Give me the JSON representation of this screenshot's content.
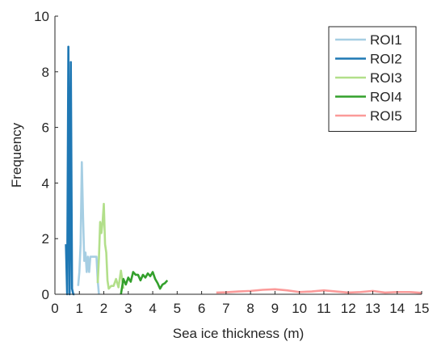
{
  "chart_data": {
    "type": "line",
    "title": "",
    "xlabel": "Sea ice thickness (m)",
    "ylabel": "Frequency",
    "xlim": [
      0,
      15
    ],
    "ylim": [
      0,
      10
    ],
    "xticks": [
      0,
      1,
      2,
      3,
      4,
      5,
      6,
      7,
      8,
      9,
      10,
      11,
      12,
      13,
      14,
      15
    ],
    "yticks": [
      0,
      2,
      4,
      6,
      8,
      10
    ],
    "grid": false,
    "legend_position": "top-right",
    "series": [
      {
        "name": "ROI1",
        "color": "#a6cee3",
        "x": [
          0.95,
          1.0,
          1.05,
          1.1,
          1.15,
          1.2,
          1.25,
          1.3,
          1.35,
          1.4,
          1.45,
          1.5,
          1.55,
          1.6,
          1.65,
          1.7,
          1.75,
          1.8
        ],
        "y": [
          0.3,
          0.8,
          1.8,
          4.75,
          2.8,
          1.2,
          1.5,
          0.8,
          1.35,
          0.8,
          1.35,
          1.35,
          1.35,
          1.35,
          1.35,
          1.35,
          0.5,
          0
        ]
      },
      {
        "name": "ROI2",
        "color": "#1f78b4",
        "x": [
          0.45,
          0.5,
          0.55,
          0.6,
          0.65,
          0.7,
          0.75,
          0.8
        ],
        "y": [
          1.8,
          0,
          8.9,
          0,
          8.35,
          0.2,
          0,
          0
        ]
      },
      {
        "name": "ROI3",
        "color": "#b2df8a",
        "x": [
          1.75,
          1.8,
          1.85,
          1.9,
          1.95,
          2.0,
          2.05,
          2.1,
          2.15,
          2.2,
          2.3,
          2.4,
          2.5,
          2.6,
          2.7,
          2.8
        ],
        "y": [
          0.4,
          1.3,
          2.6,
          2.2,
          2.6,
          3.25,
          1.8,
          1.5,
          0.5,
          0.2,
          0.3,
          0.3,
          0.55,
          0.25,
          0.85,
          0.2
        ]
      },
      {
        "name": "ROI4",
        "color": "#33a02c",
        "x": [
          2.7,
          2.8,
          2.9,
          3.0,
          3.1,
          3.2,
          3.3,
          3.4,
          3.5,
          3.6,
          3.7,
          3.8,
          3.9,
          4.0,
          4.1,
          4.2,
          4.3,
          4.4,
          4.5,
          4.6
        ],
        "y": [
          0,
          0.55,
          0.35,
          0.6,
          0.45,
          0.8,
          0.7,
          0.7,
          0.5,
          0.7,
          0.6,
          0.75,
          0.65,
          0.8,
          0.55,
          0.4,
          0.2,
          0.35,
          0.4,
          0.5
        ]
      },
      {
        "name": "ROI5",
        "color": "#fb9a99",
        "x": [
          6.6,
          7,
          7.5,
          8,
          8.5,
          9,
          9.5,
          10,
          10.5,
          11,
          11.5,
          12,
          12.5,
          13,
          13.5,
          14,
          14.5,
          15
        ],
        "y": [
          0.06,
          0.07,
          0.1,
          0.12,
          0.16,
          0.18,
          0.14,
          0.08,
          0.1,
          0.14,
          0.1,
          0.06,
          0.08,
          0.12,
          0.06,
          0.08,
          0.08,
          0.05
        ]
      }
    ]
  }
}
